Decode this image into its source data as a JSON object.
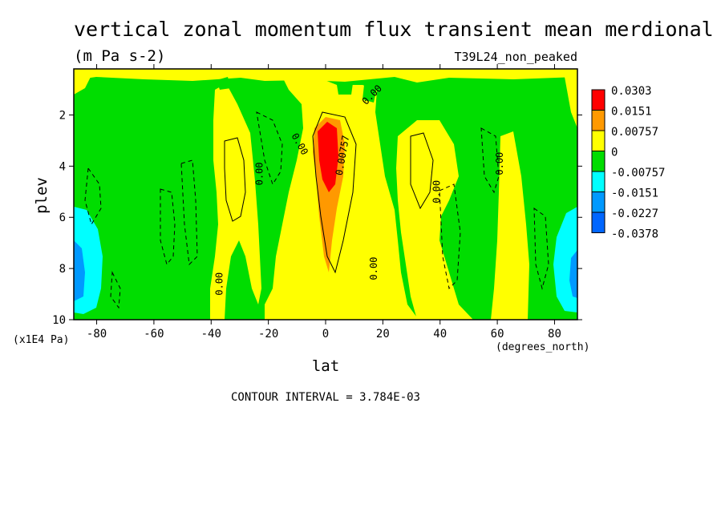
{
  "chart_data": {
    "type": "heatmap",
    "title": "vertical zonal momentum flux transient mean merdional",
    "subtitle": "(m Pa s-2)",
    "dataset_label": "T39L24_non_peaked",
    "xlabel": "lat",
    "ylabel": "plev",
    "x_units": "(degrees_north)",
    "y_units": "(x1E4 Pa)",
    "xlim": [
      -88,
      88
    ],
    "ylim": [
      10,
      0.2
    ],
    "x_ticks": [
      "-80",
      "-60",
      "-40",
      "-20",
      "0",
      "20",
      "40",
      "60",
      "80"
    ],
    "y_ticks": [
      "2",
      "4",
      "6",
      "8",
      "10"
    ],
    "contour_interval_text": "CONTOUR INTERVAL = 3.784E-03",
    "colorbar": {
      "labels": [
        "0.0303",
        "0.0151",
        "0.00757",
        "0",
        "-0.00757",
        "-0.0151",
        "-0.0227",
        "-0.0378"
      ],
      "colors": [
        "#ff0000",
        "#ff9900",
        "#ffff00",
        "#00dd00",
        "#00ffff",
        "#0099ff",
        "#0066ff",
        "#ffffff"
      ]
    },
    "contour_labels": [
      {
        "text": "0.00",
        "lat": -36,
        "plev": 8.6,
        "angle": -90
      },
      {
        "text": "0.00",
        "lat": -22,
        "plev": 4.3,
        "angle": -90
      },
      {
        "text": "0.00",
        "lat": -10,
        "plev": 3.2,
        "angle": 60
      },
      {
        "text": "0.00757",
        "lat": 7,
        "plev": 3.6,
        "angle": -80
      },
      {
        "text": "0.00",
        "lat": 17,
        "plev": 1.3,
        "angle": -45
      },
      {
        "text": "0.00",
        "lat": 18,
        "plev": 8.0,
        "angle": -90
      },
      {
        "text": "0.00",
        "lat": 40,
        "plev": 5.0,
        "angle": -90
      },
      {
        "text": "0.00",
        "lat": 62,
        "plev": 3.9,
        "angle": -90
      }
    ]
  }
}
